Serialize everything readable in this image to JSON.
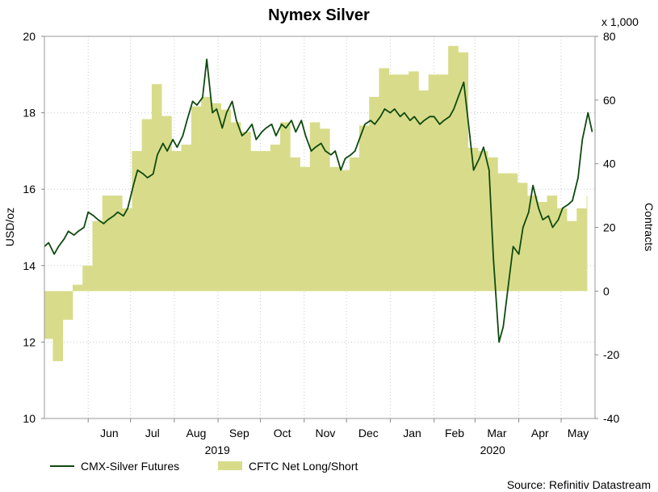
{
  "chart_data": {
    "title": "Nymex Silver",
    "left_axis": {
      "label": "USD/oz",
      "ticks": [
        10,
        12,
        14,
        16,
        18,
        20
      ],
      "range": [
        10,
        20
      ]
    },
    "right_axis": {
      "label": "Contracts",
      "multiplier_label": "x 1,000",
      "ticks": [
        -40,
        -20,
        0,
        20,
        40,
        60,
        80
      ],
      "range": [
        -40,
        80
      ]
    },
    "x_axis": {
      "month_labels": [
        "Jun",
        "Jul",
        "Aug",
        "Sep",
        "Oct",
        "Nov",
        "Dec",
        "Jan",
        "Feb",
        "Mar",
        "Apr",
        "May"
      ],
      "year_labels": [
        "2019",
        "2020"
      ],
      "range": [
        "2019-05-01",
        "2020-05-25"
      ]
    },
    "grid": true,
    "legend_position": "bottom-left",
    "source": "Source: Refinitiv Datastream",
    "series": [
      {
        "name": "CMX-Silver Futures",
        "type": "line",
        "axis": "left",
        "color": "#0f4a0f",
        "x": [
          "2019-05-01",
          "2019-05-04",
          "2019-05-08",
          "2019-05-11",
          "2019-05-15",
          "2019-05-18",
          "2019-05-22",
          "2019-05-25",
          "2019-05-29",
          "2019-06-01",
          "2019-06-05",
          "2019-06-08",
          "2019-06-12",
          "2019-06-15",
          "2019-06-19",
          "2019-06-22",
          "2019-06-26",
          "2019-06-29",
          "2019-07-03",
          "2019-07-06",
          "2019-07-10",
          "2019-07-13",
          "2019-07-17",
          "2019-07-20",
          "2019-07-24",
          "2019-07-27",
          "2019-07-31",
          "2019-08-03",
          "2019-08-07",
          "2019-08-10",
          "2019-08-14",
          "2019-08-17",
          "2019-08-21",
          "2019-08-24",
          "2019-08-28",
          "2019-08-31",
          "2019-09-04",
          "2019-09-07",
          "2019-09-11",
          "2019-09-14",
          "2019-09-18",
          "2019-09-21",
          "2019-09-25",
          "2019-09-28",
          "2019-10-02",
          "2019-10-05",
          "2019-10-09",
          "2019-10-12",
          "2019-10-16",
          "2019-10-19",
          "2019-10-23",
          "2019-10-26",
          "2019-10-30",
          "2019-11-02",
          "2019-11-06",
          "2019-11-09",
          "2019-11-13",
          "2019-11-16",
          "2019-11-20",
          "2019-11-23",
          "2019-11-27",
          "2019-11-30",
          "2019-12-04",
          "2019-12-07",
          "2019-12-11",
          "2019-12-14",
          "2019-12-18",
          "2019-12-21",
          "2019-12-25",
          "2019-12-28",
          "2020-01-01",
          "2020-01-04",
          "2020-01-08",
          "2020-01-11",
          "2020-01-15",
          "2020-01-18",
          "2020-01-22",
          "2020-01-25",
          "2020-01-29",
          "2020-02-01",
          "2020-02-05",
          "2020-02-08",
          "2020-02-12",
          "2020-02-15",
          "2020-02-19",
          "2020-02-22",
          "2020-02-26",
          "2020-02-29",
          "2020-03-04",
          "2020-03-07",
          "2020-03-11",
          "2020-03-14",
          "2020-03-18",
          "2020-03-21",
          "2020-03-25",
          "2020-03-28",
          "2020-04-01",
          "2020-04-04",
          "2020-04-08",
          "2020-04-11",
          "2020-04-15",
          "2020-04-18",
          "2020-04-22",
          "2020-04-25",
          "2020-04-29",
          "2020-05-02",
          "2020-05-06",
          "2020-05-09",
          "2020-05-13",
          "2020-05-16",
          "2020-05-20",
          "2020-05-23"
        ],
        "values": [
          14.5,
          14.6,
          14.3,
          14.5,
          14.7,
          14.9,
          14.8,
          14.9,
          15.0,
          15.4,
          15.3,
          15.2,
          15.1,
          15.2,
          15.3,
          15.4,
          15.3,
          15.5,
          16.1,
          16.5,
          16.4,
          16.3,
          16.4,
          16.9,
          17.2,
          17.0,
          17.3,
          17.1,
          17.4,
          17.8,
          18.3,
          18.2,
          18.4,
          19.4,
          18.0,
          18.1,
          17.6,
          18.0,
          18.3,
          17.8,
          17.4,
          17.5,
          17.7,
          17.3,
          17.5,
          17.6,
          17.7,
          17.4,
          17.7,
          17.6,
          17.8,
          17.5,
          17.8,
          17.4,
          17.0,
          17.1,
          17.2,
          17.0,
          16.9,
          17.0,
          16.5,
          16.8,
          16.9,
          17.0,
          17.4,
          17.7,
          17.8,
          17.7,
          17.9,
          18.1,
          18.0,
          18.1,
          17.9,
          18.0,
          17.8,
          17.9,
          17.7,
          17.8,
          17.9,
          17.9,
          17.7,
          17.8,
          17.9,
          18.1,
          18.5,
          18.8,
          17.5,
          16.5,
          16.8,
          17.1,
          16.5,
          14.2,
          12.0,
          12.4,
          13.6,
          14.5,
          14.3,
          15.0,
          15.4,
          16.1,
          15.5,
          15.2,
          15.3,
          15.0,
          15.2,
          15.5,
          15.6,
          15.7,
          16.3,
          17.3,
          18.0,
          17.5
        ]
      },
      {
        "name": "CFTC Net Long/Short",
        "type": "area",
        "axis": "right",
        "color": "#d8dc8a",
        "x": [
          "2019-05-01",
          "2019-05-07",
          "2019-05-14",
          "2019-05-21",
          "2019-05-28",
          "2019-06-04",
          "2019-06-11",
          "2019-06-18",
          "2019-06-25",
          "2019-07-02",
          "2019-07-09",
          "2019-07-16",
          "2019-07-23",
          "2019-07-30",
          "2019-08-06",
          "2019-08-13",
          "2019-08-20",
          "2019-08-27",
          "2019-09-03",
          "2019-09-10",
          "2019-09-17",
          "2019-09-24",
          "2019-10-01",
          "2019-10-08",
          "2019-10-15",
          "2019-10-22",
          "2019-10-29",
          "2019-11-05",
          "2019-11-12",
          "2019-11-19",
          "2019-11-26",
          "2019-12-03",
          "2019-12-10",
          "2019-12-17",
          "2019-12-24",
          "2019-12-31",
          "2020-01-07",
          "2020-01-14",
          "2020-01-21",
          "2020-01-28",
          "2020-02-04",
          "2020-02-11",
          "2020-02-18",
          "2020-02-25",
          "2020-03-03",
          "2020-03-10",
          "2020-03-17",
          "2020-03-24",
          "2020-03-31",
          "2020-04-07",
          "2020-04-14",
          "2020-04-21",
          "2020-04-28",
          "2020-05-05",
          "2020-05-12",
          "2020-05-19"
        ],
        "values": [
          -15,
          -22,
          -9,
          2,
          8,
          22,
          30,
          30,
          26,
          44,
          54,
          65,
          55,
          44,
          46,
          58,
          61,
          59,
          57,
          53,
          50,
          44,
          44,
          46,
          53,
          42,
          39,
          53,
          51,
          39,
          38,
          42,
          52,
          61,
          70,
          68,
          68,
          69,
          63,
          68,
          68,
          77,
          75,
          45,
          44,
          42,
          37,
          37,
          34,
          30,
          28,
          30,
          26,
          22,
          26,
          30
        ]
      }
    ]
  }
}
